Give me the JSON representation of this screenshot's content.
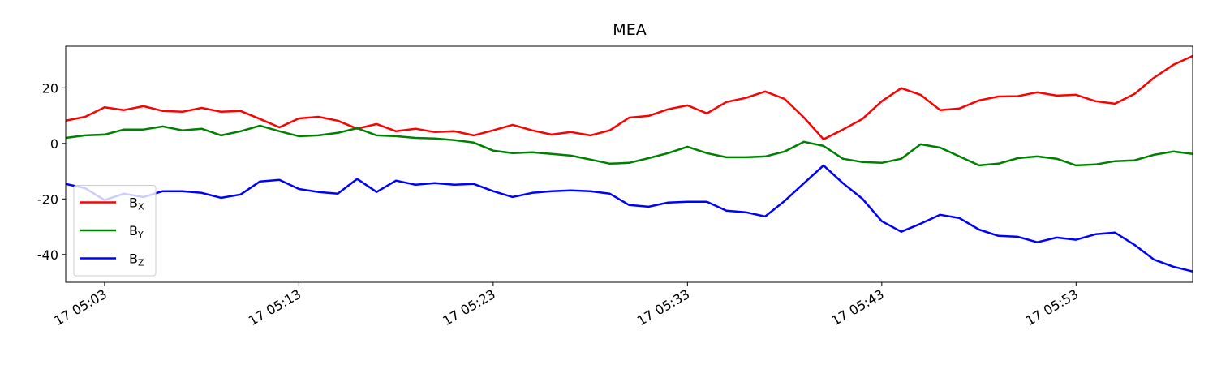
{
  "chart_data": {
    "type": "line",
    "title": "MEA",
    "x": [
      "17 05:01",
      "17 05:02",
      "17 05:03",
      "17 05:04",
      "17 05:05",
      "17 05:06",
      "17 05:07",
      "17 05:08",
      "17 05:09",
      "17 05:10",
      "17 05:11",
      "17 05:12",
      "17 05:13",
      "17 05:14",
      "17 05:15",
      "17 05:16",
      "17 05:17",
      "17 05:18",
      "17 05:19",
      "17 05:20",
      "17 05:21",
      "17 05:22",
      "17 05:23",
      "17 05:24",
      "17 05:25",
      "17 05:26",
      "17 05:27",
      "17 05:28",
      "17 05:29",
      "17 05:30",
      "17 05:31",
      "17 05:32",
      "17 05:33",
      "17 05:34",
      "17 05:35",
      "17 05:36",
      "17 05:37",
      "17 05:38",
      "17 05:39",
      "17 05:40",
      "17 05:41",
      "17 05:42",
      "17 05:43",
      "17 05:44",
      "17 05:45",
      "17 05:46",
      "17 05:47",
      "17 05:48",
      "17 05:49",
      "17 05:50",
      "17 05:51",
      "17 05:52",
      "17 05:53",
      "17 05:54",
      "17 05:55",
      "17 05:56",
      "17 05:57",
      "17 05:58",
      "17 05:59"
    ],
    "series": [
      {
        "name": "BX",
        "color": "#ff0000",
        "values": [
          8.2,
          9.6,
          13,
          12,
          13.4,
          11.7,
          11.4,
          12.8,
          11.4,
          11.7,
          8.8,
          5.8,
          9,
          9.6,
          8.2,
          5.3,
          7,
          4.4,
          5.3,
          4.1,
          4.4,
          2.9,
          4.7,
          6.7,
          4.7,
          3.2,
          4.1,
          2.9,
          4.7,
          9.3,
          9.9,
          12.3,
          13.7,
          10.8,
          14.9,
          16.4,
          18.7,
          16,
          9.3,
          1.5,
          5,
          8.8,
          15.2,
          19.9,
          17.5,
          12,
          12.6,
          15.5,
          16.9,
          17,
          18.4,
          17.2,
          17.5,
          15.2,
          14.3,
          17.8,
          23.6,
          28.3,
          31.5
        ]
      },
      {
        "name": "BY",
        "color": "#008000",
        "values": [
          2,
          2.9,
          3.2,
          5,
          5,
          6.1,
          4.7,
          5.3,
          2.9,
          4.4,
          6.4,
          4.4,
          2.6,
          2.9,
          3.8,
          5.5,
          2.9,
          2.6,
          2,
          1.8,
          1.2,
          0.3,
          -2.6,
          -3.5,
          -3.2,
          -3.8,
          -4.4,
          -5.8,
          -7.3,
          -7,
          -5.3,
          -3.5,
          -1.2,
          -3.5,
          -5,
          -5,
          -4.7,
          -2.9,
          0.6,
          -0.9,
          -5.5,
          -6.7,
          -7,
          -5.5,
          -0.3,
          -1.5,
          -4.7,
          -7.9,
          -7.3,
          -5.3,
          -4.7,
          -5.5,
          -7.9,
          -7.6,
          -6.4,
          -6.1,
          -4.1,
          -2.9,
          -3.8
        ]
      },
      {
        "name": "BZ",
        "color": "#0000ff",
        "values": [
          -14.6,
          -16.1,
          -20.4,
          -18.1,
          -19.3,
          -17.2,
          -17.2,
          -17.8,
          -19.6,
          -18.4,
          -13.7,
          -13.1,
          -16.4,
          -17.5,
          -18.1,
          -12.8,
          -17.5,
          -13.4,
          -14.9,
          -14.3,
          -14.9,
          -14.6,
          -17.2,
          -19.3,
          -17.8,
          -17.2,
          -16.9,
          -17.2,
          -18.1,
          -22.2,
          -22.8,
          -21.3,
          -21,
          -21,
          -24.2,
          -24.8,
          -26.3,
          -20.7,
          -14.3,
          -7.9,
          -14.3,
          -19.9,
          -28,
          -31.8,
          -28.9,
          -25.7,
          -26.9,
          -31,
          -33.3,
          -33.6,
          -35.6,
          -33.9,
          -34.7,
          -32.7,
          -32.1,
          -36.5,
          -41.8,
          -44.4,
          -46.1
        ]
      }
    ],
    "xlim": [
      "17 05:01",
      "17 05:59"
    ],
    "xticks": [
      "17 05:03",
      "17 05:13",
      "17 05:23",
      "17 05:33",
      "17 05:43",
      "17 05:53"
    ],
    "ylim": [
      -50,
      35
    ],
    "yticks": [
      -40,
      -20,
      0,
      20
    ],
    "grid": false,
    "legend": "lower left"
  }
}
